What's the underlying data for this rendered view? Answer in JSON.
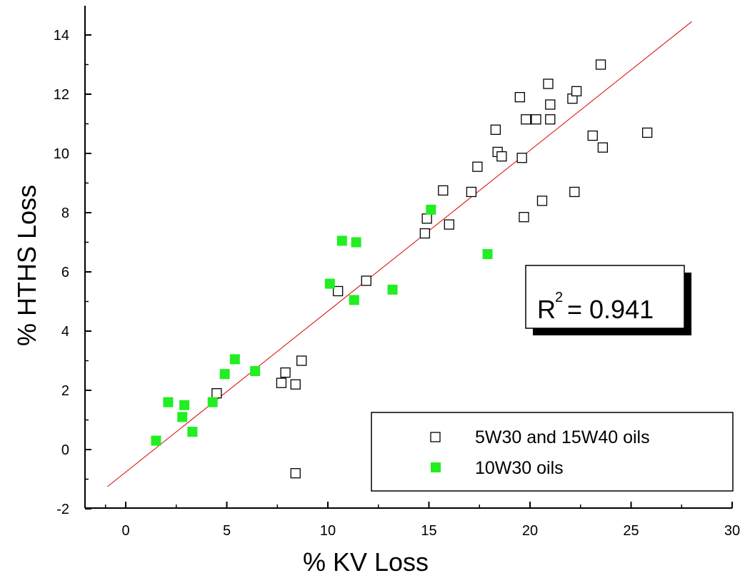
{
  "chart_data": {
    "type": "scatter",
    "xlabel": "% KV Loss",
    "ylabel": "% HTHS Loss",
    "xlim": [
      -2,
      30
    ],
    "ylim": [
      -2,
      15
    ],
    "xticks": [
      0,
      5,
      10,
      15,
      20,
      25,
      30
    ],
    "yticks": [
      -2,
      0,
      2,
      4,
      6,
      8,
      10,
      12,
      14
    ],
    "grid": false,
    "legend_position": "bottom-right",
    "series": [
      {
        "name": "5W30 and 15W40 oils",
        "marker": "open-square",
        "color": "#000000",
        "points": [
          [
            4.5,
            1.9
          ],
          [
            7.7,
            2.25
          ],
          [
            7.9,
            2.6
          ],
          [
            8.4,
            2.2
          ],
          [
            8.7,
            3.0
          ],
          [
            8.4,
            -0.8
          ],
          [
            10.5,
            5.35
          ],
          [
            11.9,
            5.7
          ],
          [
            14.8,
            7.3
          ],
          [
            14.9,
            7.8
          ],
          [
            15.7,
            8.75
          ],
          [
            16.0,
            7.6
          ],
          [
            17.1,
            8.7
          ],
          [
            17.4,
            9.55
          ],
          [
            18.3,
            10.8
          ],
          [
            18.4,
            10.05
          ],
          [
            18.6,
            9.9
          ],
          [
            19.5,
            11.9
          ],
          [
            19.6,
            9.85
          ],
          [
            19.7,
            7.85
          ],
          [
            19.8,
            11.15
          ],
          [
            20.3,
            11.15
          ],
          [
            20.6,
            8.4
          ],
          [
            20.9,
            12.35
          ],
          [
            21.0,
            11.65
          ],
          [
            21.0,
            11.15
          ],
          [
            22.1,
            11.85
          ],
          [
            22.2,
            8.7
          ],
          [
            22.3,
            12.1
          ],
          [
            23.1,
            10.6
          ],
          [
            23.5,
            13.0
          ],
          [
            23.6,
            10.2
          ],
          [
            25.8,
            10.7
          ]
        ]
      },
      {
        "name": "10W30 oils",
        "marker": "filled-square",
        "color": "#22ee22",
        "points": [
          [
            1.5,
            0.3
          ],
          [
            2.1,
            1.6
          ],
          [
            2.8,
            1.1
          ],
          [
            2.9,
            1.5
          ],
          [
            3.3,
            0.6
          ],
          [
            4.3,
            1.6
          ],
          [
            4.9,
            2.55
          ],
          [
            5.4,
            3.05
          ],
          [
            6.4,
            2.65
          ],
          [
            10.1,
            5.6
          ],
          [
            10.7,
            7.05
          ],
          [
            11.3,
            5.05
          ],
          [
            11.4,
            7.0
          ],
          [
            13.2,
            5.4
          ],
          [
            15.1,
            8.1
          ],
          [
            17.9,
            6.6
          ]
        ]
      }
    ],
    "fit_line": {
      "color": "#dd0000",
      "from": [
        -0.9,
        -1.25
      ],
      "to": [
        28.0,
        14.45
      ]
    },
    "annotation": {
      "base": "R",
      "superscript": "2",
      "text": " = 0.941"
    }
  }
}
